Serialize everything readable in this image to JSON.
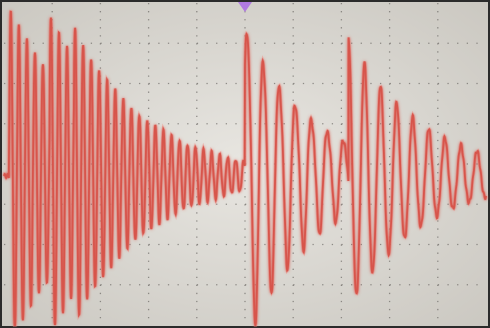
{
  "scene": {
    "subject": "oscilloscope-screen-photo",
    "colors": {
      "screen_center": "#e8e6e1",
      "screen_edge": "#c9c6bf",
      "grid_dots": "#6d6a66",
      "trace": "#d7544c",
      "trace_glow": "#ee8f86",
      "trigger_marker": "#b07ae0",
      "frame": "#2b2b2b"
    }
  },
  "graticule": {
    "divisions_x": 10,
    "divisions_y": 8,
    "minor_per_division": 5
  },
  "waveform": {
    "kind": "decaying-oscillation-bursts",
    "bursts": [
      {
        "start": 0.01,
        "amplitude": 1.0,
        "decay": 5.5,
        "cycles": 60,
        "peaks": [
          0.0,
          0.085,
          0.135
        ]
      },
      {
        "start": 0.5,
        "amplitude": 0.95,
        "decay": 7.0,
        "cycles": 30
      },
      {
        "start": 0.715,
        "amplitude": 0.9,
        "decay": 6.5,
        "cycles": 30
      }
    ],
    "baseline_level": 0.0
  }
}
